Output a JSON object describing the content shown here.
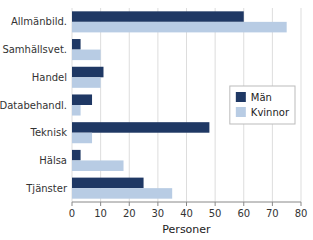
{
  "chart_data": {
    "type": "bar",
    "orientation": "horizontal",
    "categories": [
      "Allmänbild.",
      "Samhällsvet.",
      "Handel",
      "Databehandl.",
      "Teknisk",
      "Hälsa",
      "Tjänster"
    ],
    "series": [
      {
        "name": "Män",
        "color": "#1F3864",
        "values": [
          60,
          3,
          11,
          7,
          48,
          3,
          25
        ]
      },
      {
        "name": "Kvinnor",
        "color": "#B8CCE4",
        "values": [
          75,
          10,
          10,
          3,
          7,
          18,
          35
        ]
      }
    ],
    "xlabel": "Personer",
    "xlim": [
      0,
      80
    ],
    "xticks": [
      0,
      10,
      20,
      30,
      40,
      50,
      60,
      70,
      80
    ],
    "grid": true,
    "legend": "right"
  }
}
